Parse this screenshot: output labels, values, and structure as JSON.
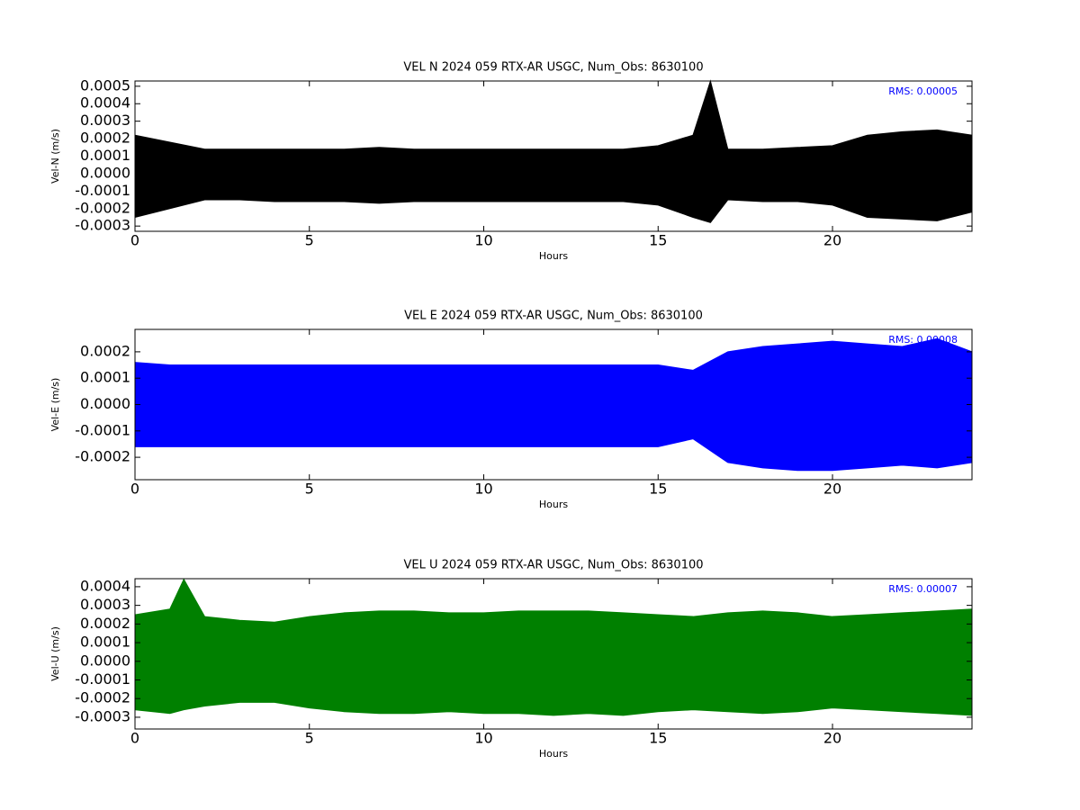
{
  "chart_data": [
    {
      "type": "band",
      "title": "VEL N 2024 059 RTX-AR  USGC, Num_Obs: 8630100",
      "xlabel": "Hours",
      "ylabel": "Vel-N (m/s)",
      "annotation": "RMS:  0.00005",
      "annotation_color": "#0000ff",
      "x": [
        0,
        1,
        2,
        3,
        4,
        5,
        6,
        7,
        8,
        9,
        10,
        11,
        12,
        13,
        14,
        15,
        16,
        16.5,
        17,
        18,
        19,
        20,
        21,
        22,
        23,
        24
      ],
      "series": [
        {
          "color": "#000000",
          "values": [
            0.00022,
            0.00018,
            0.00014,
            0.00014,
            0.00014,
            0.00014,
            0.00014,
            0.00015,
            0.00014,
            0.00014,
            0.00014,
            0.00014,
            0.00014,
            0.00014,
            0.00014,
            0.00016,
            0.00022,
            0.00053,
            0.00014,
            0.00014,
            0.00015,
            0.00016,
            0.00022,
            0.00024,
            0.00025,
            0.00022
          ]
        },
        {
          "color": "#000000",
          "values": [
            -0.00025,
            -0.0002,
            -0.00015,
            -0.00015,
            -0.00016,
            -0.00016,
            -0.00016,
            -0.00017,
            -0.00016,
            -0.00016,
            -0.00016,
            -0.00016,
            -0.00016,
            -0.00016,
            -0.00016,
            -0.00018,
            -0.00025,
            -0.00028,
            -0.00015,
            -0.00016,
            -0.00016,
            -0.00018,
            -0.00025,
            -0.00026,
            -0.00027,
            -0.00022
          ]
        }
      ],
      "xlim": [
        0,
        24
      ],
      "xticks": [
        0,
        5,
        10,
        15,
        20
      ],
      "ylim": [
        -0.00033,
        0.00053
      ],
      "yticks": [
        -0.0003,
        -0.0002,
        -0.0001,
        {
          "value": 0,
          "label": "0.0000"
        },
        0.0001,
        0.0002,
        0.0003,
        0.0004,
        0.0005
      ]
    },
    {
      "type": "band",
      "title": "VEL E 2024 059 RTX-AR  USGC, Num_Obs: 8630100",
      "xlabel": "Hours",
      "ylabel": "Vel-E (m/s)",
      "annotation": "RMS:  0.00008",
      "annotation_color": "#0000ff",
      "x": [
        0,
        1,
        2,
        3,
        4,
        5,
        6,
        7,
        8,
        9,
        10,
        11,
        12,
        13,
        14,
        15,
        16,
        17,
        18,
        19,
        20,
        21,
        22,
        23,
        24
      ],
      "series": [
        {
          "color": "#0000ff",
          "values": [
            0.00016,
            0.00015,
            0.00015,
            0.00015,
            0.00015,
            0.00015,
            0.00015,
            0.00015,
            0.00015,
            0.00015,
            0.00015,
            0.00015,
            0.00015,
            0.00015,
            0.00015,
            0.00015,
            0.00013,
            0.0002,
            0.00022,
            0.00023,
            0.00024,
            0.00023,
            0.00022,
            0.00025,
            0.0002
          ]
        },
        {
          "color": "#0000ff",
          "values": [
            -0.00016,
            -0.00016,
            -0.00016,
            -0.00016,
            -0.00016,
            -0.00016,
            -0.00016,
            -0.00016,
            -0.00016,
            -0.00016,
            -0.00016,
            -0.00016,
            -0.00016,
            -0.00016,
            -0.00016,
            -0.00016,
            -0.00013,
            -0.00022,
            -0.00024,
            -0.00025,
            -0.00025,
            -0.00024,
            -0.00023,
            -0.00024,
            -0.00022
          ]
        }
      ],
      "xlim": [
        0,
        24
      ],
      "xticks": [
        0,
        5,
        10,
        15,
        20
      ],
      "ylim": [
        -0.000285,
        0.000285
      ],
      "yticks": [
        -0.0002,
        -0.0001,
        {
          "value": 0,
          "label": "0.0000"
        },
        0.0001,
        0.0002
      ]
    },
    {
      "type": "band",
      "title": "VEL U 2024 059 RTX-AR  USGC, Num_Obs: 8630100",
      "xlabel": "Hours",
      "ylabel": "Vel-U (m/s)",
      "annotation": "RMS:  0.00007",
      "annotation_color": "#0000ff",
      "x": [
        0,
        1,
        1.4,
        2,
        3,
        4,
        5,
        6,
        7,
        8,
        9,
        10,
        11,
        12,
        13,
        14,
        15,
        16,
        17,
        18,
        19,
        20,
        21,
        22,
        23,
        24
      ],
      "series": [
        {
          "color": "#008000",
          "values": [
            0.00025,
            0.00028,
            0.00044,
            0.00024,
            0.00022,
            0.00021,
            0.00024,
            0.00026,
            0.00027,
            0.00027,
            0.00026,
            0.00026,
            0.00027,
            0.00027,
            0.00027,
            0.00026,
            0.00025,
            0.00024,
            0.00026,
            0.00027,
            0.00026,
            0.00024,
            0.00025,
            0.00026,
            0.00027,
            0.00028
          ]
        },
        {
          "color": "#008000",
          "values": [
            -0.00026,
            -0.00028,
            -0.00026,
            -0.00024,
            -0.00022,
            -0.00022,
            -0.00025,
            -0.00027,
            -0.00028,
            -0.00028,
            -0.00027,
            -0.00028,
            -0.00028,
            -0.00029,
            -0.00028,
            -0.00029,
            -0.00027,
            -0.00026,
            -0.00027,
            -0.00028,
            -0.00027,
            -0.00025,
            -0.00026,
            -0.00027,
            -0.00028,
            -0.00029
          ]
        }
      ],
      "xlim": [
        0,
        24
      ],
      "xticks": [
        0,
        5,
        10,
        15,
        20
      ],
      "ylim": [
        -0.000363,
        0.000443
      ],
      "yticks": [
        -0.0003,
        -0.0002,
        -0.0001,
        {
          "value": 0,
          "label": "0.0000"
        },
        0.0001,
        0.0002,
        0.0003,
        0.0004
      ]
    }
  ]
}
